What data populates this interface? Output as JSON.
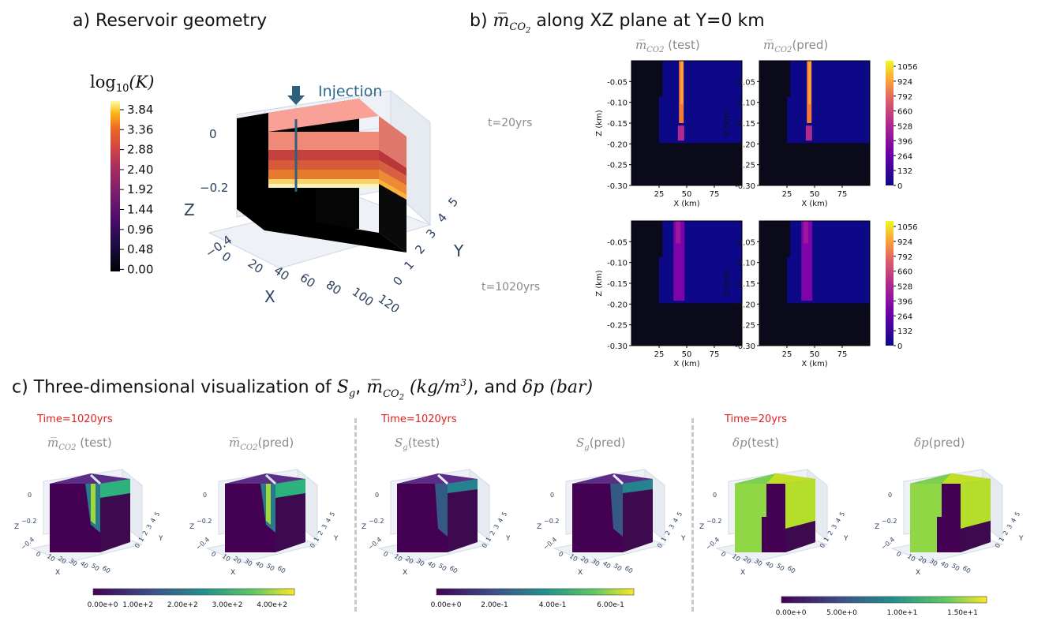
{
  "panel_a": {
    "title": "a) Reservoir geometry",
    "colorbar_title": "log",
    "colorbar_title_sub": "10",
    "colorbar_title_var": "(K)",
    "colorbar_ticks": [
      "3.84",
      "3.36",
      "2.88",
      "2.40",
      "1.92",
      "1.44",
      "0.96",
      "0.48",
      "0.00"
    ],
    "injection_label": "Injection",
    "axis_z_label": "Z",
    "axis_x_label": "X",
    "axis_y_label": "Y",
    "z_ticks": [
      "0",
      "−0.2",
      "−0.4"
    ],
    "x_ticks": [
      "0",
      "20",
      "40",
      "60",
      "80",
      "100",
      "120"
    ],
    "y_ticks": [
      "0",
      "1",
      "2",
      "3",
      "4",
      "5"
    ]
  },
  "panel_b": {
    "title_prefix": "b) ",
    "title_symbol": "m̅",
    "title_sub": "CO",
    "title_subsub": "2",
    "title_suffix": " along XZ plane at Y=0 km",
    "col_titles": [
      {
        "sym": "m̅",
        "sub": "CO2",
        "text": " (test)"
      },
      {
        "sym": "m̅",
        "sub": "CO2",
        "text": "(pred)"
      }
    ],
    "row_labels": [
      "t=20yrs",
      "t=1020yrs"
    ],
    "ylabel": "Z (km)",
    "xlabel": "X (km)",
    "y_ticks": [
      "-0.05",
      "-0.10",
      "-0.15",
      "-0.20",
      "-0.25",
      "-0.30"
    ],
    "x_ticks": [
      "25",
      "50",
      "75"
    ],
    "colorbar_ticks": [
      "1056",
      "924",
      "792",
      "660",
      "528",
      "396",
      "264",
      "132",
      "0"
    ]
  },
  "panel_c": {
    "title_prefix": "c) Three-dimensional visualization of ",
    "sg_sym": "S",
    "sg_sub": "g",
    "sep1": ", ",
    "m_sym": "m̅",
    "m_sub": "CO",
    "m_subsub": "2",
    "m_unit": " (kg/m",
    "m_unit_sup": "3",
    "m_unit_end": ")",
    "sep2": ", and ",
    "dp_text": "δp (bar)",
    "groups": [
      {
        "time": "Time=1020yrs",
        "plots": [
          {
            "sym": "m̅",
            "sub": "CO2",
            "text": " (test)"
          },
          {
            "sym": "m̅",
            "sub": "CO2",
            "text": "(pred)"
          }
        ],
        "colorbar_ticks": [
          "0.00e+0",
          "1.00e+2",
          "2.00e+2",
          "3.00e+2",
          "4.00e+2"
        ]
      },
      {
        "time": "Time=1020yrs",
        "plots": [
          {
            "sym": "S",
            "sub": "g",
            "text": "(test)"
          },
          {
            "sym": "S",
            "sub": "g",
            "text": "(pred)"
          }
        ],
        "colorbar_ticks": [
          "0.00e+0",
          "2.00e-1",
          "4.00e-1",
          "6.00e-1"
        ]
      },
      {
        "time": "Time=20yrs",
        "plots": [
          {
            "sym": "δp",
            "sub": "",
            "text": "(test)"
          },
          {
            "sym": "δp",
            "sub": "",
            "text": "(pred)"
          }
        ],
        "colorbar_ticks": [
          "0.00e+0",
          "5.00e+0",
          "1.00e+1",
          "1.50e+1"
        ]
      }
    ],
    "mini_axis": {
      "z_label": "Z",
      "x_label": "X",
      "y_label": "Y",
      "z_ticks": [
        "0",
        "−0.2",
        "−0.4"
      ],
      "x_ticks": [
        "0",
        "10",
        "20",
        "30",
        "40",
        "50",
        "60"
      ],
      "y_ticks": [
        "0",
        "1",
        "2",
        "3",
        "4",
        "5"
      ]
    }
  },
  "chart_data": [
    {
      "type": "heatmap",
      "title": "a) Reservoir geometry",
      "colorbar": {
        "label": "log10(K)",
        "range": [
          0.0,
          3.84
        ]
      },
      "x_range": [
        0,
        120
      ],
      "y_range": [
        0,
        5
      ],
      "z_range": [
        -0.4,
        0
      ]
    },
    {
      "type": "heatmap",
      "title": "b) m̅CO2 along XZ plane at Y=0 km",
      "panels": [
        "t=20yrs test",
        "t=20yrs pred",
        "t=1020yrs test",
        "t=1020yrs pred"
      ],
      "x_range": [
        0,
        100
      ],
      "y_range": [
        -0.3,
        0
      ],
      "colorbar_range": [
        0,
        1056
      ]
    },
    {
      "type": "heatmap",
      "title": "c) Three-dimensional visualization",
      "colorbar_ranges": [
        [
          0,
          450
        ],
        [
          0,
          0.68
        ],
        [
          0,
          17
        ]
      ]
    }
  ]
}
